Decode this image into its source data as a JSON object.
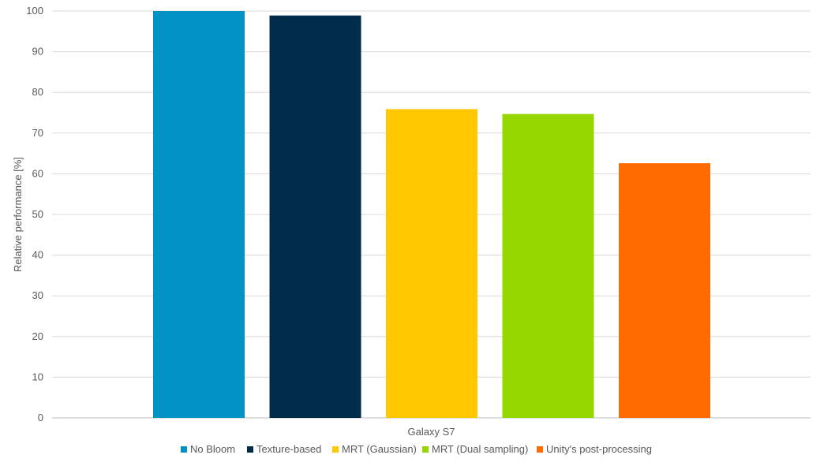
{
  "chart_data": {
    "type": "bar",
    "title": "",
    "xlabel": "",
    "ylabel": "Relative performance [%]",
    "categories": [
      "Galaxy S7"
    ],
    "ylim": [
      0,
      100
    ],
    "yticks": [
      0,
      10,
      20,
      30,
      40,
      50,
      60,
      70,
      80,
      90,
      100
    ],
    "grid": true,
    "legend_position": "bottom",
    "series": [
      {
        "name": "No Bloom",
        "values": [
          100
        ],
        "color": "#0093C4"
      },
      {
        "name": "Texture-based",
        "values": [
          98.9
        ],
        "color": "#002C4A"
      },
      {
        "name": "MRT (Gaussian)",
        "values": [
          75.9
        ],
        "color": "#FFC800"
      },
      {
        "name": "MRT (Dual sampling)",
        "values": [
          74.7
        ],
        "color": "#97D700"
      },
      {
        "name": "Unity's post-processing",
        "values": [
          62.6
        ],
        "color": "#FF6B00"
      }
    ]
  }
}
